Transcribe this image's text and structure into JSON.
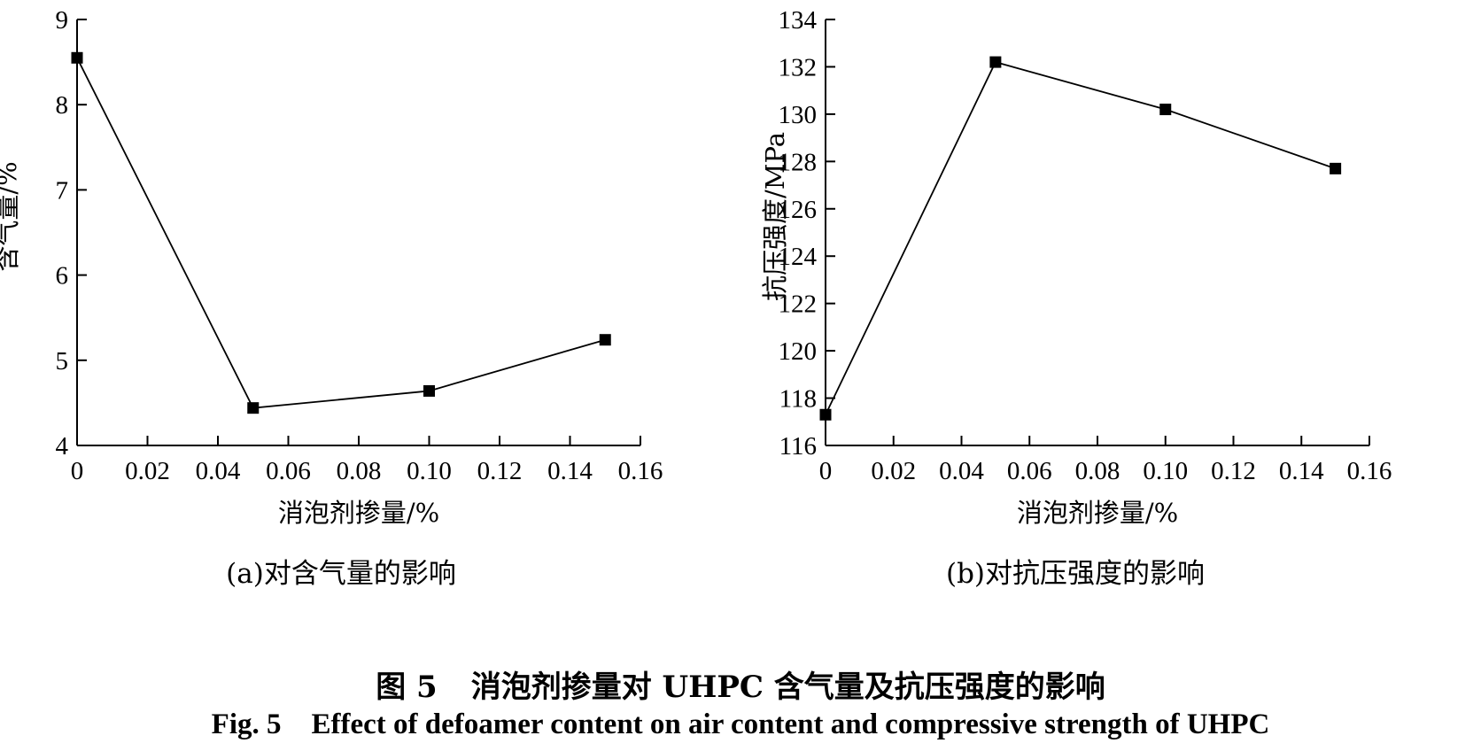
{
  "figure": {
    "caption_cn_number": "图 5",
    "caption_cn_text": "消泡剂掺量对 UHPC 含气量及抗压强度的影响",
    "caption_en_number": "Fig. 5",
    "caption_en_text": "Effect of defoamer content on air content and compressive strength of UHPC"
  },
  "chart_data": [
    {
      "type": "line",
      "subplot_label": "(a)对含气量的影响",
      "xlabel": "消泡剂掺量/%",
      "ylabel": "含气量/%",
      "xlim": [
        0,
        0.16
      ],
      "ylim": [
        4,
        9
      ],
      "xticks": [
        0,
        0.02,
        0.04,
        0.06,
        0.08,
        0.1,
        0.12,
        0.14,
        0.16
      ],
      "xtick_labels": [
        "0",
        "0.02",
        "0.04",
        "0.06",
        "0.08",
        "0.10",
        "0.12",
        "0.14",
        "0.16"
      ],
      "yticks": [
        4,
        5,
        6,
        7,
        8,
        9
      ],
      "ytick_labels": [
        "4",
        "5",
        "6",
        "7",
        "8",
        "9"
      ],
      "grid": false,
      "marker": "square",
      "color": "#000000",
      "x": [
        0,
        0.05,
        0.1,
        0.15
      ],
      "y": [
        8.55,
        4.44,
        4.64,
        5.24
      ]
    },
    {
      "type": "line",
      "subplot_label": "(b)对抗压强度的影响",
      "xlabel": "消泡剂掺量/%",
      "ylabel": "抗压强度/MPa",
      "xlim": [
        0,
        0.16
      ],
      "ylim": [
        116,
        134
      ],
      "xticks": [
        0,
        0.02,
        0.04,
        0.06,
        0.08,
        0.1,
        0.12,
        0.14,
        0.16
      ],
      "xtick_labels": [
        "0",
        "0.02",
        "0.04",
        "0.06",
        "0.08",
        "0.10",
        "0.12",
        "0.14",
        "0.16"
      ],
      "yticks": [
        116,
        118,
        120,
        122,
        124,
        126,
        128,
        130,
        132,
        134
      ],
      "ytick_labels": [
        "116",
        "118",
        "120",
        "122",
        "124",
        "126",
        "128",
        "130",
        "132",
        "134"
      ],
      "grid": false,
      "marker": "square",
      "color": "#000000",
      "x": [
        0,
        0.05,
        0.1,
        0.15
      ],
      "y": [
        117.3,
        132.2,
        130.2,
        127.7
      ]
    }
  ]
}
